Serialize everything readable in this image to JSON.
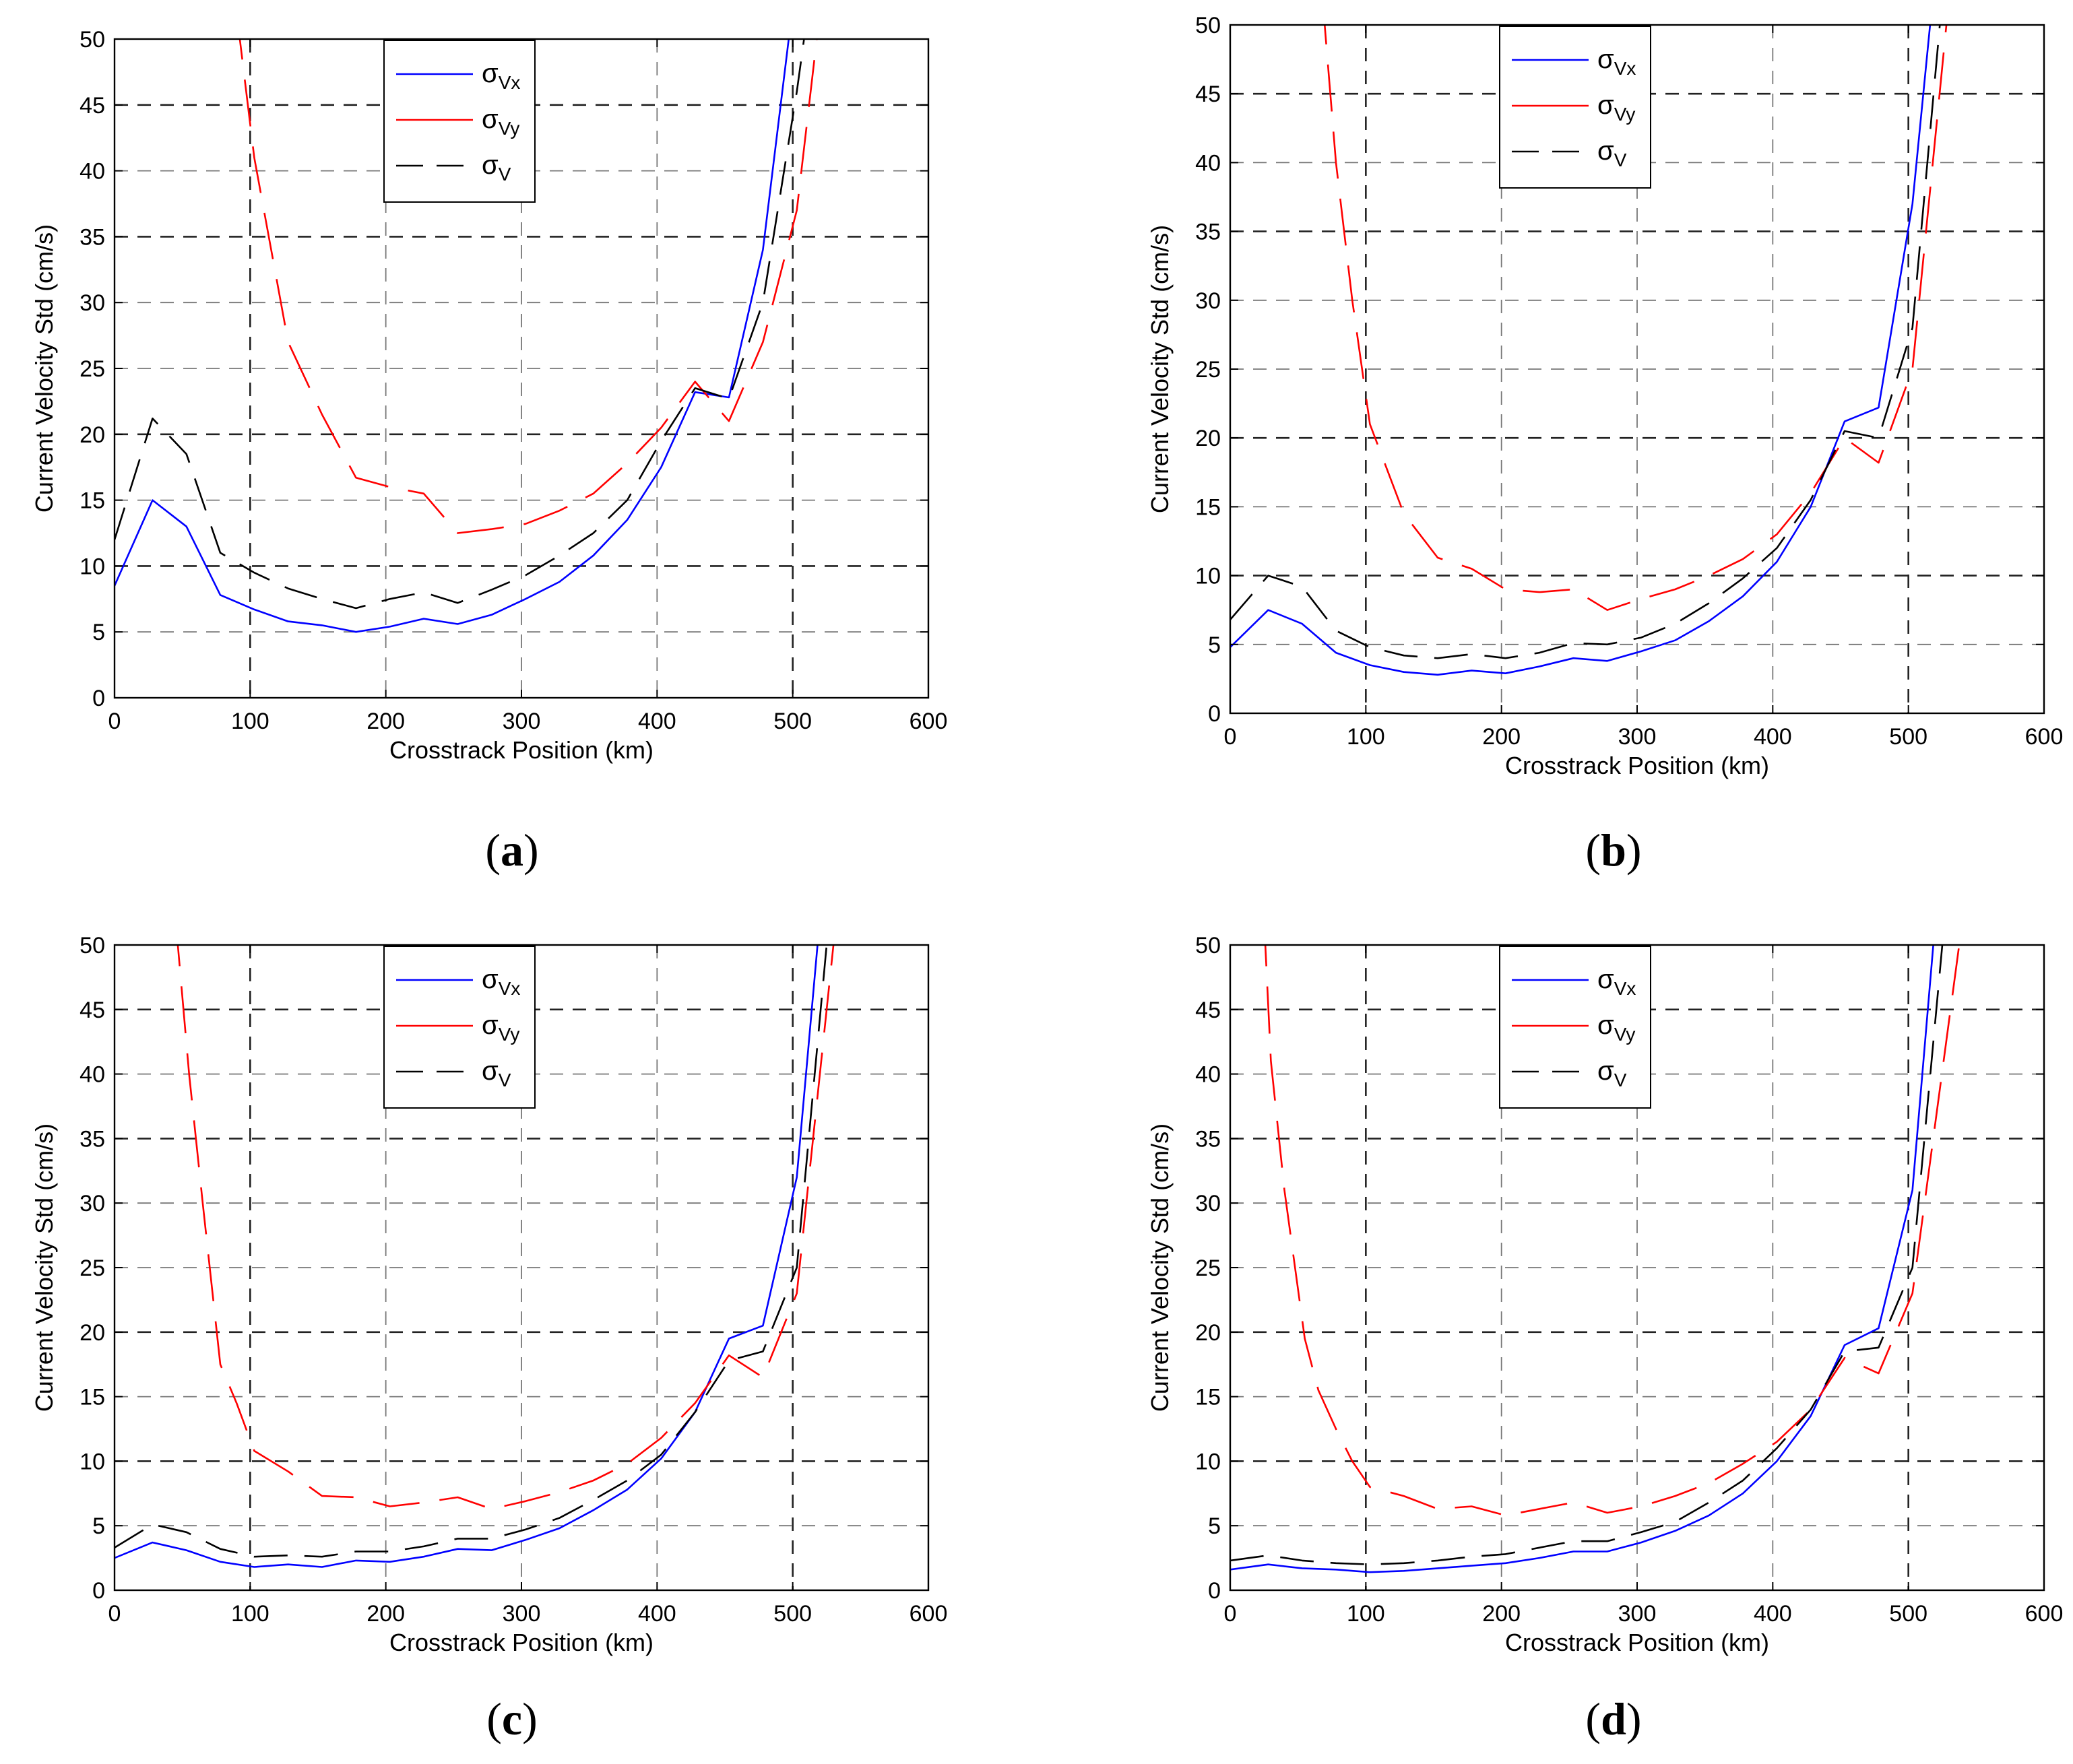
{
  "figure": {
    "colors": {
      "vx": "#0000ff",
      "vy": "#ff0000",
      "v": "#000000",
      "grid": "#555555"
    }
  },
  "chart_data": [
    {
      "panel": "(a)",
      "label_letter": "a",
      "type": "line",
      "xlabel": "Crosstrack Position (km)",
      "ylabel": "Current Velocity Std (cm/s)",
      "xlim": [
        0,
        600
      ],
      "ylim": [
        0,
        50
      ],
      "xticks": [
        0,
        100,
        200,
        300,
        400,
        500,
        600
      ],
      "yticks": [
        0,
        5,
        10,
        15,
        20,
        25,
        30,
        35,
        40,
        45,
        50
      ],
      "grid": true,
      "legend_placement": "top-center",
      "legend": [
        {
          "main": "σ",
          "sub": "Vx"
        },
        {
          "main": "σ",
          "sub": "Vy"
        },
        {
          "main": "σ",
          "sub": "V"
        }
      ],
      "series": [
        {
          "name": "σVx",
          "x": [
            0,
            28,
            53,
            78,
            103,
            128,
            153,
            178,
            203,
            228,
            253,
            278,
            303,
            328,
            353,
            378,
            403,
            428,
            453,
            478,
            503
          ],
          "y": [
            8.5,
            15,
            13,
            7.8,
            6.7,
            5.8,
            5.5,
            5,
            5.4,
            6,
            5.6,
            6.3,
            7.5,
            8.8,
            10.8,
            13.5,
            17.5,
            23.2,
            22.8,
            34,
            55
          ]
        },
        {
          "name": "σVy",
          "x": [
            90,
            103,
            128,
            153,
            178,
            203,
            228,
            253,
            278,
            303,
            328,
            353,
            378,
            403,
            428,
            453,
            478,
            503,
            520
          ],
          "y": [
            52,
            41,
            27,
            21.5,
            16.7,
            16,
            15.5,
            12.5,
            12.8,
            13.2,
            14.2,
            15.5,
            17.8,
            20.5,
            24,
            21,
            27,
            37,
            52
          ]
        },
        {
          "name": "σV",
          "x": [
            0,
            28,
            53,
            78,
            103,
            128,
            153,
            178,
            203,
            228,
            253,
            278,
            303,
            328,
            353,
            378,
            403,
            428,
            453,
            478,
            503,
            515
          ],
          "y": [
            12,
            21.2,
            18.5,
            11,
            9.5,
            8.3,
            7.5,
            6.8,
            7.5,
            8,
            7.2,
            8.2,
            9.3,
            10.8,
            12.5,
            15,
            19.5,
            23.5,
            22.7,
            30,
            46,
            55
          ]
        }
      ]
    },
    {
      "panel": "(b)",
      "label_letter": "b",
      "type": "line",
      "xlabel": "Crosstrack Position (km)",
      "ylabel": "Current Velocity Std (cm/s)",
      "xlim": [
        0,
        600
      ],
      "ylim": [
        0,
        50
      ],
      "xticks": [
        0,
        100,
        200,
        300,
        400,
        500,
        600
      ],
      "yticks": [
        0,
        5,
        10,
        15,
        20,
        25,
        30,
        35,
        40,
        45,
        50
      ],
      "grid": true,
      "legend_placement": "top-center",
      "legend": [
        {
          "main": "σ",
          "sub": "Vx"
        },
        {
          "main": "σ",
          "sub": "Vy"
        },
        {
          "main": "σ",
          "sub": "V"
        }
      ],
      "series": [
        {
          "name": "σVx",
          "x": [
            0,
            28,
            53,
            78,
            103,
            128,
            153,
            178,
            203,
            228,
            253,
            278,
            303,
            328,
            353,
            378,
            403,
            428,
            453,
            478,
            503,
            518
          ],
          "y": [
            4.8,
            7.5,
            6.5,
            4.4,
            3.5,
            3,
            2.8,
            3.1,
            2.9,
            3.4,
            4,
            3.8,
            4.5,
            5.3,
            6.7,
            8.5,
            11,
            15,
            21.2,
            22.2,
            37,
            52
          ]
        },
        {
          "name": "σVy",
          "x": [
            68,
            78,
            90,
            103,
            128,
            153,
            178,
            203,
            228,
            253,
            278,
            303,
            328,
            353,
            378,
            403,
            428,
            453,
            478,
            503,
            530
          ],
          "y": [
            52,
            40,
            30,
            21,
            14.5,
            11.3,
            10.5,
            9,
            8.8,
            9,
            7.5,
            8.3,
            9,
            10,
            11.2,
            13,
            16,
            20,
            18.2,
            25,
            52
          ]
        },
        {
          "name": "σV",
          "x": [
            0,
            28,
            53,
            78,
            103,
            128,
            153,
            178,
            203,
            228,
            253,
            278,
            303,
            328,
            353,
            378,
            403,
            428,
            453,
            478,
            503,
            525
          ],
          "y": [
            6.8,
            10,
            9.2,
            6,
            4.8,
            4.2,
            4,
            4.3,
            4,
            4.4,
            5.1,
            5,
            5.5,
            6.5,
            8,
            9.8,
            12,
            15.5,
            20.5,
            20,
            28,
            52
          ]
        }
      ]
    },
    {
      "panel": "(c)",
      "label_letter": "c",
      "type": "line",
      "xlabel": "Crosstrack Position (km)",
      "ylabel": "Current Velocity Std (cm/s)",
      "xlim": [
        0,
        600
      ],
      "ylim": [
        0,
        50
      ],
      "xticks": [
        0,
        100,
        200,
        300,
        400,
        500,
        600
      ],
      "yticks": [
        0,
        5,
        10,
        15,
        20,
        25,
        30,
        35,
        40,
        45,
        50
      ],
      "grid": true,
      "legend_placement": "top-center",
      "legend": [
        {
          "main": "σ",
          "sub": "Vx"
        },
        {
          "main": "σ",
          "sub": "Vy"
        },
        {
          "main": "σ",
          "sub": "V"
        }
      ],
      "series": [
        {
          "name": "σVx",
          "x": [
            0,
            28,
            53,
            78,
            103,
            128,
            153,
            178,
            203,
            228,
            253,
            278,
            303,
            328,
            353,
            378,
            403,
            428,
            453,
            478,
            503,
            520
          ],
          "y": [
            2.5,
            3.7,
            3.1,
            2.2,
            1.8,
            2,
            1.8,
            2.3,
            2.2,
            2.6,
            3.2,
            3.1,
            3.9,
            4.8,
            6.2,
            7.8,
            10.2,
            13.8,
            19.5,
            20.5,
            32,
            52
          ]
        },
        {
          "name": "σVy",
          "x": [
            45,
            55,
            65,
            78,
            90,
            103,
            128,
            153,
            178,
            203,
            228,
            253,
            278,
            303,
            328,
            353,
            378,
            403,
            428,
            453,
            478,
            503,
            530
          ],
          "y": [
            52,
            40,
            30,
            17.5,
            14.5,
            10.8,
            9.2,
            7.3,
            7.2,
            6.5,
            6.8,
            7.2,
            6.3,
            6.9,
            7.6,
            8.5,
            9.8,
            11.8,
            14.5,
            18.2,
            16.5,
            23,
            50
          ]
        },
        {
          "name": "σV",
          "x": [
            0,
            28,
            53,
            78,
            103,
            128,
            153,
            178,
            203,
            228,
            253,
            278,
            303,
            328,
            353,
            378,
            403,
            428,
            453,
            478,
            503,
            525
          ],
          "y": [
            3.3,
            5.1,
            4.5,
            3.2,
            2.6,
            2.7,
            2.6,
            3,
            3,
            3.4,
            4,
            4,
            4.7,
            5.6,
            7,
            8.5,
            10.5,
            13.8,
            17.8,
            18.5,
            25,
            50
          ]
        }
      ]
    },
    {
      "panel": "(d)",
      "label_letter": "d",
      "type": "line",
      "xlabel": "Crosstrack Position (km)",
      "ylabel": "Current Velocity Std (cm/s)",
      "xlim": [
        0,
        600
      ],
      "ylim": [
        0,
        50
      ],
      "xticks": [
        0,
        100,
        200,
        300,
        400,
        500,
        600
      ],
      "yticks": [
        0,
        5,
        10,
        15,
        20,
        25,
        30,
        35,
        40,
        45,
        50
      ],
      "grid": true,
      "legend_placement": "top-center",
      "legend": [
        {
          "main": "σ",
          "sub": "Vx"
        },
        {
          "main": "σ",
          "sub": "Vy"
        },
        {
          "main": "σ",
          "sub": "V"
        }
      ],
      "series": [
        {
          "name": "σVx",
          "x": [
            0,
            28,
            53,
            78,
            103,
            128,
            153,
            178,
            203,
            228,
            253,
            278,
            303,
            328,
            353,
            378,
            403,
            428,
            453,
            478,
            503,
            520
          ],
          "y": [
            1.6,
            2,
            1.7,
            1.6,
            1.4,
            1.5,
            1.7,
            1.9,
            2.1,
            2.5,
            3,
            3,
            3.7,
            4.6,
            5.8,
            7.5,
            10,
            13.5,
            19,
            20.3,
            31,
            52
          ]
        },
        {
          "name": "σVy",
          "x": [
            25,
            30,
            40,
            55,
            65,
            78,
            90,
            103,
            128,
            153,
            178,
            203,
            228,
            253,
            278,
            303,
            328,
            353,
            378,
            403,
            428,
            453,
            478,
            503,
            540
          ],
          "y": [
            52,
            41,
            31,
            19.5,
            15.5,
            12.5,
            10,
            8,
            7.3,
            6.3,
            6.5,
            5.8,
            6.3,
            6.8,
            6,
            6.5,
            7.3,
            8.3,
            9.8,
            11.5,
            14,
            18,
            16.8,
            23,
            52
          ]
        },
        {
          "name": "σV",
          "x": [
            0,
            28,
            53,
            78,
            103,
            128,
            153,
            178,
            203,
            228,
            253,
            278,
            303,
            328,
            353,
            378,
            403,
            428,
            453,
            478,
            503,
            525
          ],
          "y": [
            2.3,
            2.7,
            2.3,
            2.1,
            2,
            2.1,
            2.3,
            2.6,
            2.8,
            3.3,
            3.8,
            3.8,
            4.5,
            5.3,
            6.8,
            8.5,
            11,
            14,
            18.5,
            18.8,
            25,
            50
          ]
        }
      ]
    }
  ]
}
